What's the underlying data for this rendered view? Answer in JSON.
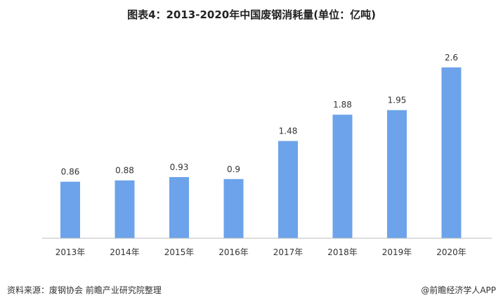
{
  "chart_data": {
    "type": "bar",
    "title": "图表4：2013-2020年中国废钢消耗量(单位：亿吨)",
    "categories": [
      "2013年",
      "2014年",
      "2015年",
      "2016年",
      "2017年",
      "2018年",
      "2019年",
      "2020年"
    ],
    "values": [
      0.86,
      0.88,
      0.93,
      0.9,
      1.48,
      1.88,
      1.95,
      2.6
    ],
    "value_labels": [
      "0.86",
      "0.88",
      "0.93",
      "0.9",
      "1.48",
      "1.88",
      "1.95",
      "2.6"
    ],
    "xlabel": "",
    "ylabel": "",
    "ylim": [
      0,
      2.8
    ],
    "grid": false,
    "legend": "none",
    "bar_color": "#6CA3EA"
  },
  "footer": {
    "source": "资料来源：废钢协会 前瞻产业研究院整理",
    "brand": "@前瞻经济学人APP"
  }
}
